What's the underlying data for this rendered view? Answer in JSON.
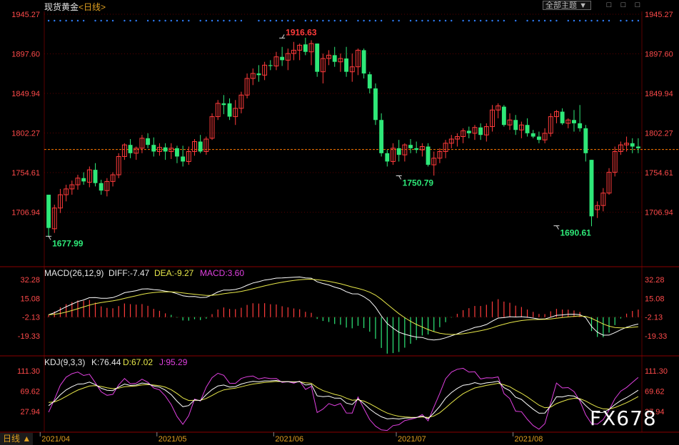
{
  "header": {
    "instrument": "现货黄金",
    "period": "<日线>",
    "topic_button": "全部主题",
    "topic_arrow": "▼",
    "window_buttons": [
      "□",
      "□",
      "□"
    ]
  },
  "timeframe_button": "日线 ▲",
  "watermark": "FX678",
  "colors": {
    "up": "#ff3b3b",
    "down": "#2ee878",
    "axis_text": "#ff4a4a",
    "grid": "#5a0000",
    "ref_line": "#ff7a00",
    "diff_line": "#ffffff",
    "dea_line": "#e8e84a",
    "kdj_k": "#ffffff",
    "kdj_d": "#e8e84a",
    "kdj_j": "#e040e0",
    "dots": "#2f7fff"
  },
  "chart_data": [
    {
      "type": "candlestick",
      "title": "现货黄金<日线>",
      "ylim": [
        1658.5,
        1945.27
      ],
      "y_ticks": [
        "1945.27",
        "1897.60",
        "1849.94",
        "1802.27",
        "1754.61",
        "1706.94"
      ],
      "x_ticks": [
        "2021/04",
        "2021/05",
        "2021/06",
        "2021/07",
        "2021/08"
      ],
      "x_tick_index": [
        1,
        21,
        41,
        62,
        82
      ],
      "reference_price": 1782.5,
      "annotations": [
        {
          "label": "1916.63",
          "index": 40,
          "value": 1916.63,
          "color": "#ff3b3b"
        },
        {
          "label": "1677.99",
          "index": 0,
          "value": 1677.99,
          "color": "#2ee878"
        },
        {
          "label": "1750.79",
          "index": 60,
          "value": 1750.79,
          "color": "#2ee878"
        },
        {
          "label": "1690.61",
          "index": 87,
          "value": 1690.61,
          "color": "#2ee878"
        }
      ],
      "ohlc": [
        [
          1728,
          1728,
          1678,
          1688
        ],
        [
          1687,
          1716,
          1682,
          1712
        ],
        [
          1712,
          1735,
          1706,
          1728
        ],
        [
          1728,
          1740,
          1720,
          1735
        ],
        [
          1735,
          1745,
          1728,
          1740
        ],
        [
          1740,
          1752,
          1734,
          1748
        ],
        [
          1748,
          1755,
          1740,
          1744
        ],
        [
          1743,
          1762,
          1737,
          1758
        ],
        [
          1758,
          1766,
          1738,
          1742
        ],
        [
          1742,
          1746,
          1728,
          1733
        ],
        [
          1733,
          1748,
          1726,
          1744
        ],
        [
          1744,
          1755,
          1738,
          1752
        ],
        [
          1752,
          1778,
          1748,
          1774
        ],
        [
          1774,
          1790,
          1770,
          1788
        ],
        [
          1788,
          1795,
          1772,
          1778
        ],
        [
          1778,
          1786,
          1770,
          1784
        ],
        [
          1784,
          1800,
          1778,
          1796
        ],
        [
          1796,
          1802,
          1784,
          1788
        ],
        [
          1788,
          1797,
          1774,
          1780
        ],
        [
          1780,
          1790,
          1775,
          1785
        ],
        [
          1785,
          1790,
          1770,
          1780
        ],
        [
          1780,
          1790,
          1771,
          1784
        ],
        [
          1784,
          1787,
          1766,
          1774
        ],
        [
          1774,
          1787,
          1762,
          1768
        ],
        [
          1768,
          1786,
          1764,
          1780
        ],
        [
          1780,
          1795,
          1775,
          1792
        ],
        [
          1792,
          1800,
          1778,
          1780
        ],
        [
          1780,
          1798,
          1776,
          1795
        ],
        [
          1796,
          1826,
          1794,
          1822
        ],
        [
          1822,
          1842,
          1818,
          1838
        ],
        [
          1838,
          1848,
          1825,
          1836
        ],
        [
          1838,
          1844,
          1818,
          1822
        ],
        [
          1822,
          1842,
          1812,
          1832
        ],
        [
          1832,
          1852,
          1826,
          1848
        ],
        [
          1848,
          1874,
          1844,
          1868
        ],
        [
          1868,
          1880,
          1860,
          1874
        ],
        [
          1874,
          1884,
          1864,
          1872
        ],
        [
          1872,
          1888,
          1866,
          1884
        ],
        [
          1884,
          1890,
          1878,
          1883
        ],
        [
          1883,
          1900,
          1878,
          1894
        ],
        [
          1894,
          1906,
          1883,
          1890
        ],
        [
          1890,
          1904,
          1878,
          1898
        ],
        [
          1898,
          1912,
          1890,
          1902
        ],
        [
          1902,
          1910,
          1890,
          1908
        ],
        [
          1909,
          1917,
          1896,
          1900
        ],
        [
          1900,
          1914,
          1884,
          1910
        ],
        [
          1910,
          1910,
          1870,
          1876
        ],
        [
          1876,
          1898,
          1862,
          1892
        ],
        [
          1892,
          1902,
          1884,
          1896
        ],
        [
          1896,
          1906,
          1882,
          1888
        ],
        [
          1888,
          1898,
          1876,
          1892
        ],
        [
          1892,
          1906,
          1870,
          1876
        ],
        [
          1876,
          1898,
          1864,
          1882
        ],
        [
          1882,
          1904,
          1872,
          1902
        ],
        [
          1902,
          1904,
          1868,
          1874
        ],
        [
          1873,
          1876,
          1850,
          1856
        ],
        [
          1856,
          1862,
          1812,
          1818
        ],
        [
          1818,
          1826,
          1774,
          1778
        ],
        [
          1778,
          1782,
          1762,
          1768
        ],
        [
          1768,
          1790,
          1764,
          1784
        ],
        [
          1784,
          1794,
          1768,
          1776
        ],
        [
          1776,
          1790,
          1768,
          1788
        ],
        [
          1788,
          1795,
          1778,
          1784
        ],
        [
          1784,
          1792,
          1778,
          1782
        ],
        [
          1782,
          1790,
          1774,
          1786
        ],
        [
          1786,
          1790,
          1762,
          1764
        ],
        [
          1764,
          1780,
          1751,
          1772
        ],
        [
          1772,
          1784,
          1766,
          1780
        ],
        [
          1780,
          1794,
          1772,
          1790
        ],
        [
          1790,
          1800,
          1784,
          1795
        ],
        [
          1795,
          1802,
          1786,
          1798
        ],
        [
          1798,
          1808,
          1790,
          1805
        ],
        [
          1805,
          1810,
          1796,
          1802
        ],
        [
          1802,
          1812,
          1794,
          1809
        ],
        [
          1809,
          1814,
          1794,
          1800
        ],
        [
          1800,
          1814,
          1792,
          1810
        ],
        [
          1810,
          1836,
          1804,
          1830
        ],
        [
          1830,
          1838,
          1820,
          1835
        ],
        [
          1834,
          1836,
          1810,
          1812
        ],
        [
          1812,
          1826,
          1806,
          1818
        ],
        [
          1818,
          1824,
          1800,
          1806
        ],
        [
          1806,
          1816,
          1796,
          1812
        ],
        [
          1812,
          1820,
          1798,
          1802
        ],
        [
          1802,
          1806,
          1796,
          1798
        ],
        [
          1798,
          1804,
          1790,
          1794
        ],
        [
          1794,
          1808,
          1790,
          1802
        ],
        [
          1802,
          1826,
          1798,
          1822
        ],
        [
          1822,
          1830,
          1814,
          1828
        ],
        [
          1828,
          1832,
          1812,
          1814
        ],
        [
          1814,
          1820,
          1808,
          1818
        ],
        [
          1818,
          1830,
          1804,
          1814
        ],
        [
          1814,
          1836,
          1804,
          1808
        ],
        [
          1808,
          1812,
          1768,
          1778
        ],
        [
          1770,
          1770,
          1690,
          1702
        ],
        [
          1710,
          1720,
          1700,
          1715
        ],
        [
          1715,
          1736,
          1708,
          1730
        ],
        [
          1730,
          1760,
          1728,
          1755
        ],
        [
          1755,
          1786,
          1750,
          1780
        ],
        [
          1780,
          1792,
          1776,
          1788
        ],
        [
          1788,
          1798,
          1780,
          1790
        ],
        [
          1790,
          1796,
          1778,
          1786
        ],
        [
          1786,
          1796,
          1778,
          1784
        ]
      ]
    },
    {
      "type": "bar",
      "title": "MACD(26,12,9)",
      "labels": {
        "diff": "DIFF:-7.47",
        "dea": "DEA:-9.27",
        "macd": "MACD:3.60"
      },
      "ylim": [
        -40,
        36
      ],
      "y_ticks": [
        "32.28",
        "15.08",
        "-2.13",
        "-19.33"
      ]
    },
    {
      "type": "line",
      "title": "KDJ(9,3,3)",
      "labels": {
        "k": "K:76.44",
        "d": "D:67.02",
        "j": "J:95.29"
      },
      "ylim": [
        -14,
        125
      ],
      "y_ticks": [
        "111.30",
        "69.62",
        "27.94"
      ]
    }
  ]
}
